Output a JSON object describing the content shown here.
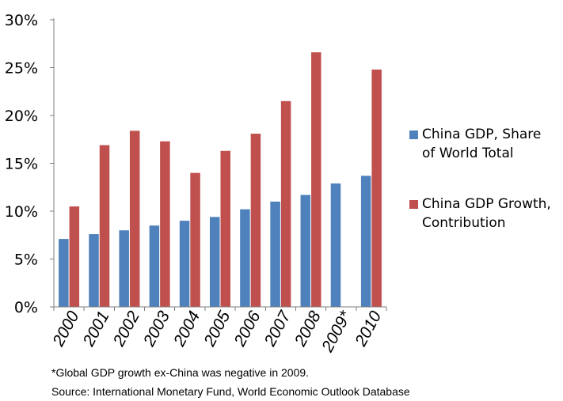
{
  "chart_data": {
    "type": "bar",
    "categories": [
      "2000",
      "2001",
      "2002",
      "2003",
      "2004",
      "2005",
      "2006",
      "2007",
      "2008",
      "2009*",
      "2010"
    ],
    "series": [
      {
        "name": "China GDP, Share of World Total",
        "color": "#4f81bd",
        "values": [
          7.1,
          7.6,
          8.0,
          8.5,
          9.0,
          9.4,
          10.2,
          11.0,
          11.7,
          12.9,
          13.7
        ]
      },
      {
        "name": "China GDP Growth, Contribution",
        "color": "#c0504d",
        "values": [
          10.5,
          16.9,
          18.4,
          17.3,
          14.0,
          16.3,
          18.1,
          21.5,
          26.6,
          null,
          24.8
        ]
      }
    ],
    "yticks": [
      "0%",
      "5%",
      "10%",
      "15%",
      "20%",
      "25%",
      "30%"
    ],
    "ylim": [
      0,
      30
    ],
    "grid": false,
    "legend_position": "right",
    "xlabel": "",
    "ylabel": ""
  },
  "legend": {
    "items": [
      {
        "label_line1": "China GDP, Share",
        "label_line2": "of World Total"
      },
      {
        "label_line1": "China GDP Growth,",
        "label_line2": "Contribution"
      }
    ]
  },
  "notes": {
    "footnote": "*Global GDP growth ex-China was negative in 2009.",
    "source": "Source: International Monetary Fund, World Economic Outlook Database"
  }
}
